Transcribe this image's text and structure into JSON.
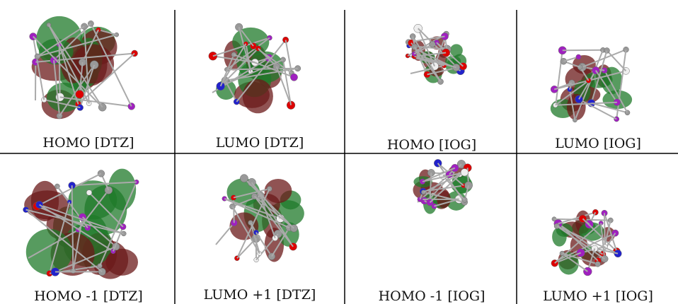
{
  "grid": {
    "rows": [
      [
        "HOMO [DTZ]",
        "LUMO [DTZ]",
        "HOMO [IOG]",
        "LUMO [IOG]"
      ],
      [
        "HOMO -1 [DTZ]",
        "LUMO +1 [DTZ]",
        "HOMO -1 [IOG]",
        "LUMO +1 [IOG]"
      ]
    ]
  }
}
